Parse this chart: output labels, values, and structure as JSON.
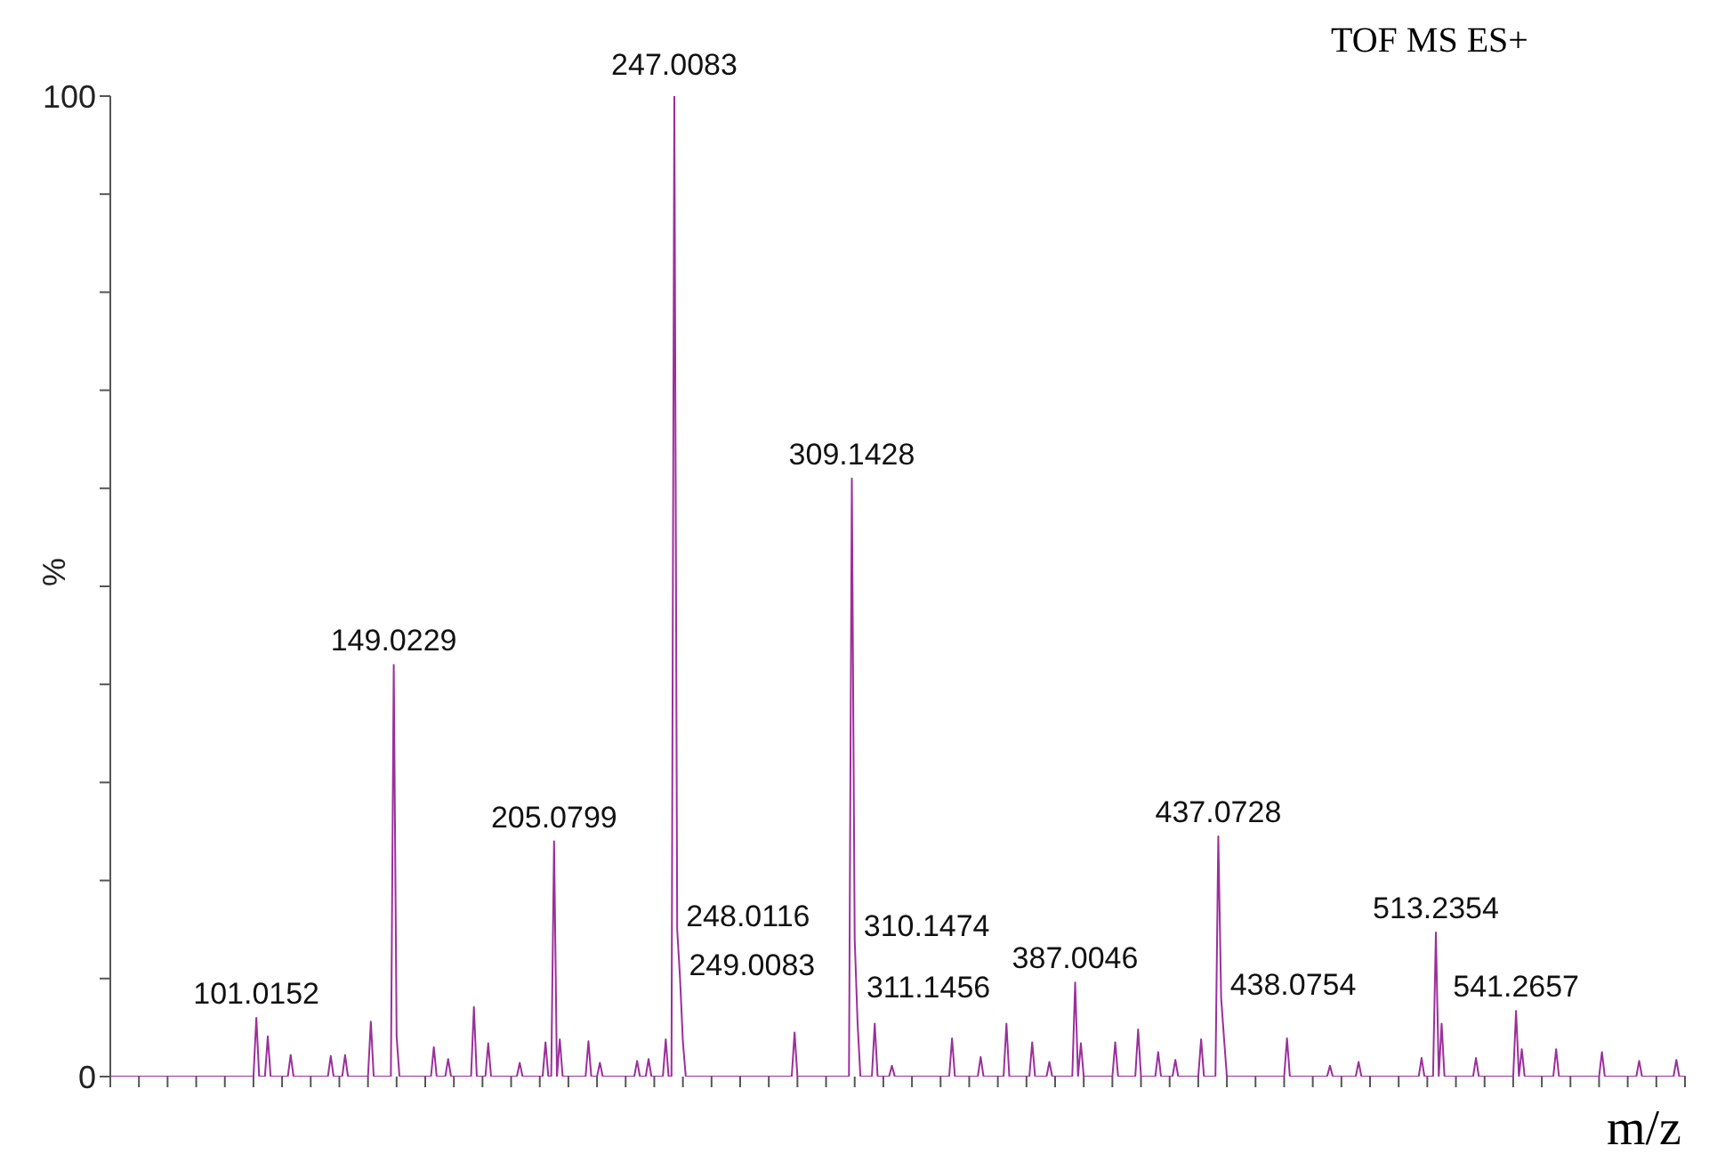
{
  "chart_data": {
    "type": "line",
    "title": "TOF MS ES+",
    "xlabel": "m/z",
    "ylabel": "%",
    "color": "#9c2f9c",
    "marker": "none",
    "line_style": "solid",
    "categories": [
      null,
      null,
      null,
      null,
      null,
      null,
      null,
      null,
      null,
      null,
      null,
      null,
      null,
      null,
      null,
      null,
      null,
      null,
      null,
      null,
      null,
      null,
      null,
      null,
      null,
      null,
      null,
      null,
      null,
      null,
      null,
      null,
      null,
      null,
      null,
      null,
      null,
      null,
      null,
      null,
      null,
      null,
      null,
      null,
      null,
      null,
      null,
      null,
      null,
      null,
      null,
      null,
      null,
      null,
      null,
      null,
      null,
      null,
      null,
      null,
      null,
      null,
      null,
      null,
      null,
      null,
      null,
      null,
      null,
      null,
      null,
      null,
      null,
      null,
      null,
      null,
      null,
      null,
      null,
      null,
      null,
      null,
      null,
      null,
      null,
      null,
      null,
      null,
      null,
      null,
      null,
      null,
      null,
      null,
      null,
      null,
      null,
      null,
      null,
      null,
      null,
      null,
      null,
      null,
      null,
      null,
      null,
      null,
      null,
      null,
      null,
      null,
      null,
      null,
      null,
      null,
      null,
      null,
      null,
      null,
      null,
      null,
      null,
      null,
      null,
      null,
      null,
      null,
      null,
      null,
      null,
      null,
      null,
      null,
      null,
      null,
      null,
      null,
      null,
      null,
      null,
      null,
      null,
      null,
      null,
      null,
      null,
      null,
      null,
      null,
      null,
      null,
      null,
      null,
      null,
      null,
      null,
      null,
      null,
      null,
      null,
      null,
      null,
      null,
      null,
      null,
      null,
      null,
      null,
      null,
      null,
      null,
      null,
      null,
      null,
      null,
      null,
      null,
      null,
      null,
      null,
      null,
      null,
      null,
      null,
      null,
      null,
      null,
      null,
      null,
      null,
      null,
      null,
      null,
      null,
      null,
      null,
      null,
      null,
      null,
      null,
      null,
      null,
      null,
      null,
      null,
      null,
      null,
      null,
      null,
      null,
      null,
      null,
      null,
      null,
      null,
      null,
      null,
      null,
      null,
      null,
      null,
      null,
      null,
      null,
      null,
      null,
      null,
      null,
      null,
      null,
      null,
      null,
      null,
      null,
      null,
      null,
      null,
      null,
      null,
      null,
      null,
      null,
      null,
      null,
      null,
      null,
      null,
      null,
      null,
      null,
      null,
      null,
      null,
      null,
      null,
      null,
      null,
      null,
      null,
      null,
      null,
      null,
      null,
      null,
      null,
      null,
      null,
      null,
      null,
      null,
      null,
      null,
      null,
      null,
      null,
      null,
      null,
      null,
      null,
      null,
      null,
      null,
      null,
      null,
      null,
      null,
      null,
      null,
      null,
      null,
      null,
      null,
      null,
      null,
      null,
      null,
      null,
      null,
      null,
      null,
      null,
      null,
      null,
      null,
      null,
      null,
      null,
      null,
      null,
      null,
      null,
      null,
      null,
      null,
      null,
      null,
      null,
      null,
      null,
      null,
      null,
      null,
      null,
      null,
      null,
      null,
      null,
      null,
      null,
      null,
      null,
      null,
      null,
      null,
      null,
      null,
      null,
      null,
      null,
      null,
      null,
      null,
      null,
      null,
      null,
      null,
      null,
      null,
      null,
      null,
      null,
      null,
      null,
      null,
      null,
      null,
      null,
      null,
      null,
      null,
      null,
      null,
      null,
      null,
      null,
      null,
      null,
      null,
      null,
      null,
      null,
      null,
      null,
      null,
      null,
      null,
      null,
      null,
      null,
      null,
      null,
      null,
      null,
      null,
      null,
      null,
      null,
      null,
      null,
      null,
      null,
      null,
      null,
      null,
      null,
      null,
      null,
      null,
      null,
      null,
      null,
      null,
      null,
      null,
      null,
      null,
      null,
      null,
      null,
      null,
      null,
      null,
      null,
      null,
      null,
      null,
      null,
      null,
      null,
      null,
      null,
      null,
      null,
      null,
      null,
      null,
      null,
      null,
      null,
      null,
      null,
      null,
      null,
      null,
      null,
      null,
      null,
      null,
      null,
      null,
      null,
      null,
      null,
      null,
      null,
      null,
      null,
      null,
      null,
      null,
      null,
      null,
      null,
      null,
      null,
      null,
      null,
      null,
      null,
      null,
      null,
      null,
      null,
      null,
      null,
      null,
      null,
      null,
      null,
      null,
      null,
      null,
      null,
      null,
      null,
      null,
      null,
      null,
      null,
      null,
      null,
      null,
      null,
      null,
      null,
      null,
      null,
      null,
      null,
      null,
      null,
      null,
      null,
      null,
      null,
      null,
      null,
      null,
      null,
      null,
      null,
      null,
      null,
      null,
      null,
      null,
      null,
      null,
      null,
      null,
      null,
      null,
      null,
      null,
      null,
      null,
      null,
      null,
      null,
      null,
      null,
      null,
      null,
      null,
      null,
      null,
      null,
      null,
      null,
      null,
      null,
      null,
      null,
      null,
      null,
      null,
      null,
      null,
      null,
      null,
      null,
      null,
      null,
      null,
      null,
      null,
      null,
      null,
      null,
      null
    ],
    "values": [
      0,
      0,
      0,
      0,
      0,
      0,
      0,
      0,
      0,
      0,
      0,
      0,
      0,
      0,
      0,
      0,
      0,
      0,
      0,
      0,
      0,
      0,
      0,
      0,
      0,
      0,
      0,
      0,
      0,
      0,
      0,
      0,
      0,
      0,
      0,
      0,
      0,
      0,
      0,
      0,
      0,
      0,
      0,
      0,
      0,
      0,
      0,
      0,
      0,
      0,
      0,
      6,
      0,
      0,
      0,
      4.1,
      0,
      0,
      0,
      0,
      0,
      0,
      0,
      2.2,
      0,
      0,
      0,
      0,
      0,
      0,
      0,
      0,
      0,
      0,
      0,
      0,
      0,
      2.1,
      0,
      0,
      0,
      0,
      2.2,
      0,
      0,
      0,
      0,
      0,
      0,
      0,
      0,
      5.6,
      0,
      0,
      0,
      0,
      0,
      0,
      0,
      42,
      4.1,
      0,
      0,
      0,
      0,
      0,
      0,
      0,
      0,
      0,
      0,
      0,
      0,
      3,
      0,
      0,
      0,
      0,
      1.8,
      0,
      0,
      0,
      0,
      0,
      0,
      0,
      0,
      7.1,
      0,
      0,
      0,
      0,
      3.4,
      0,
      0,
      0,
      0,
      0,
      0,
      0,
      0,
      0,
      0,
      1.4,
      0,
      0,
      0,
      0,
      0,
      0,
      0,
      0,
      3.5,
      0,
      0,
      24,
      0,
      3.8,
      0,
      0,
      0,
      0,
      0,
      0,
      0,
      0,
      0,
      3.6,
      0,
      0,
      0,
      1.4,
      0,
      0,
      0,
      0,
      0,
      0,
      0,
      0,
      0,
      0,
      0,
      0,
      1.6,
      0,
      0,
      0,
      1.8,
      0,
      0,
      0,
      0,
      0,
      3.8,
      0,
      0,
      100,
      15,
      10,
      3.5,
      0,
      0,
      0,
      0,
      0,
      0,
      0,
      0,
      0,
      0,
      0,
      0,
      0,
      0,
      0,
      0,
      0,
      0,
      0,
      0,
      0,
      0,
      0,
      0,
      0,
      0,
      0,
      0,
      0,
      0,
      0,
      0,
      0,
      0,
      0,
      0,
      0,
      0,
      4.5,
      0,
      0,
      0,
      0,
      0,
      0,
      0,
      0,
      0,
      0,
      0,
      0,
      0,
      0,
      0,
      0,
      0,
      0,
      0,
      61,
      14,
      5.5,
      0,
      0,
      0,
      0,
      0,
      5.4,
      0,
      0,
      0,
      0,
      0,
      1.1,
      0,
      0,
      0,
      0,
      0,
      0,
      0,
      0,
      0,
      0,
      0,
      0,
      0,
      0,
      0,
      0,
      0,
      0,
      0,
      0,
      3.9,
      0,
      0,
      0,
      0,
      0,
      0,
      0,
      0,
      0,
      2,
      0,
      0,
      0,
      0,
      0,
      0,
      0,
      0,
      5.4,
      0,
      0,
      0,
      0,
      0,
      0,
      0,
      0,
      3.5,
      0,
      0,
      0,
      0,
      0,
      1.5,
      0,
      0,
      0,
      0,
      0,
      0,
      0,
      0,
      9.6,
      0,
      3.4,
      0,
      0,
      0,
      0,
      0,
      0,
      0,
      0,
      0,
      0,
      0,
      3.5,
      0,
      0,
      0,
      0,
      0,
      0,
      0,
      4.8,
      0,
      0,
      0,
      0,
      0,
      0,
      2.5,
      0,
      0,
      0,
      0,
      0,
      1.7,
      0,
      0,
      0,
      0,
      0,
      0,
      0,
      0,
      3.8,
      0,
      0,
      0,
      0,
      0,
      24.5,
      8,
      3.9,
      0,
      0,
      0,
      0,
      0,
      0,
      0,
      0,
      0,
      0,
      0,
      0,
      0,
      0,
      0,
      0,
      0,
      0,
      0,
      0,
      0,
      3.9,
      0,
      0,
      0,
      0,
      0,
      0,
      0,
      0,
      0,
      0,
      0,
      0,
      0,
      0,
      1.1,
      0,
      0,
      0,
      0,
      0,
      0,
      0,
      0,
      0,
      1.5,
      0,
      0,
      0,
      0,
      0,
      0,
      0,
      0,
      0,
      0,
      0,
      0,
      0,
      0,
      0,
      0,
      0,
      0,
      0,
      0,
      0,
      1.9,
      0,
      0,
      0,
      0,
      14.7,
      0,
      5.4,
      0,
      0,
      0,
      0,
      0,
      0,
      0,
      0,
      0,
      0,
      0,
      1.9,
      0,
      0,
      0,
      0,
      0,
      0,
      0,
      0,
      0,
      0,
      0,
      0,
      0,
      6.7,
      0,
      2.8,
      0,
      0,
      0,
      0,
      0,
      0,
      0,
      0,
      0,
      0,
      0,
      2.8,
      0,
      0,
      0,
      0,
      0,
      0,
      0,
      0,
      0,
      0,
      0,
      0,
      0,
      0,
      0,
      2.5,
      0,
      0,
      0,
      0,
      0,
      0,
      0,
      0,
      0,
      0,
      0,
      0,
      1.6,
      0,
      0,
      0,
      0,
      0,
      0,
      0,
      0,
      0,
      0,
      0,
      0,
      1.7,
      0,
      0,
      0
    ],
    "annotations": [
      {
        "text": "101.0152",
        "y": 6
      },
      {
        "text": "149.0229",
        "y": 42
      },
      {
        "text": "205.0799",
        "y": 24
      },
      {
        "text": "247.0083",
        "y": 100
      },
      "248.0116",
      "249.0083",
      {
        "text": "309.1428",
        "y": 61
      },
      "310.1474",
      "311.1456",
      {
        "text": "387.0046",
        "y": 9.6
      },
      {
        "text": "437.0728",
        "y": 24.5
      },
      "438.0754",
      {
        "text": "513.2354",
        "y": 14.7
      },
      {
        "text": "541.2657",
        "y": 6.7
      }
    ],
    "ylim": [
      0,
      100
    ],
    "yticks": [
      0,
      {
        "value": 10,
        "label": null
      },
      {
        "value": 20,
        "label": null
      },
      {
        "value": 30,
        "label": null
      },
      {
        "value": 40,
        "label": null
      },
      {
        "value": 50,
        "label": null
      },
      {
        "value": 60,
        "label": null
      },
      {
        "value": 70,
        "label": null
      },
      {
        "value": 80,
        "label": null
      },
      {
        "value": 90,
        "label": null
      },
      100
    ]
  }
}
